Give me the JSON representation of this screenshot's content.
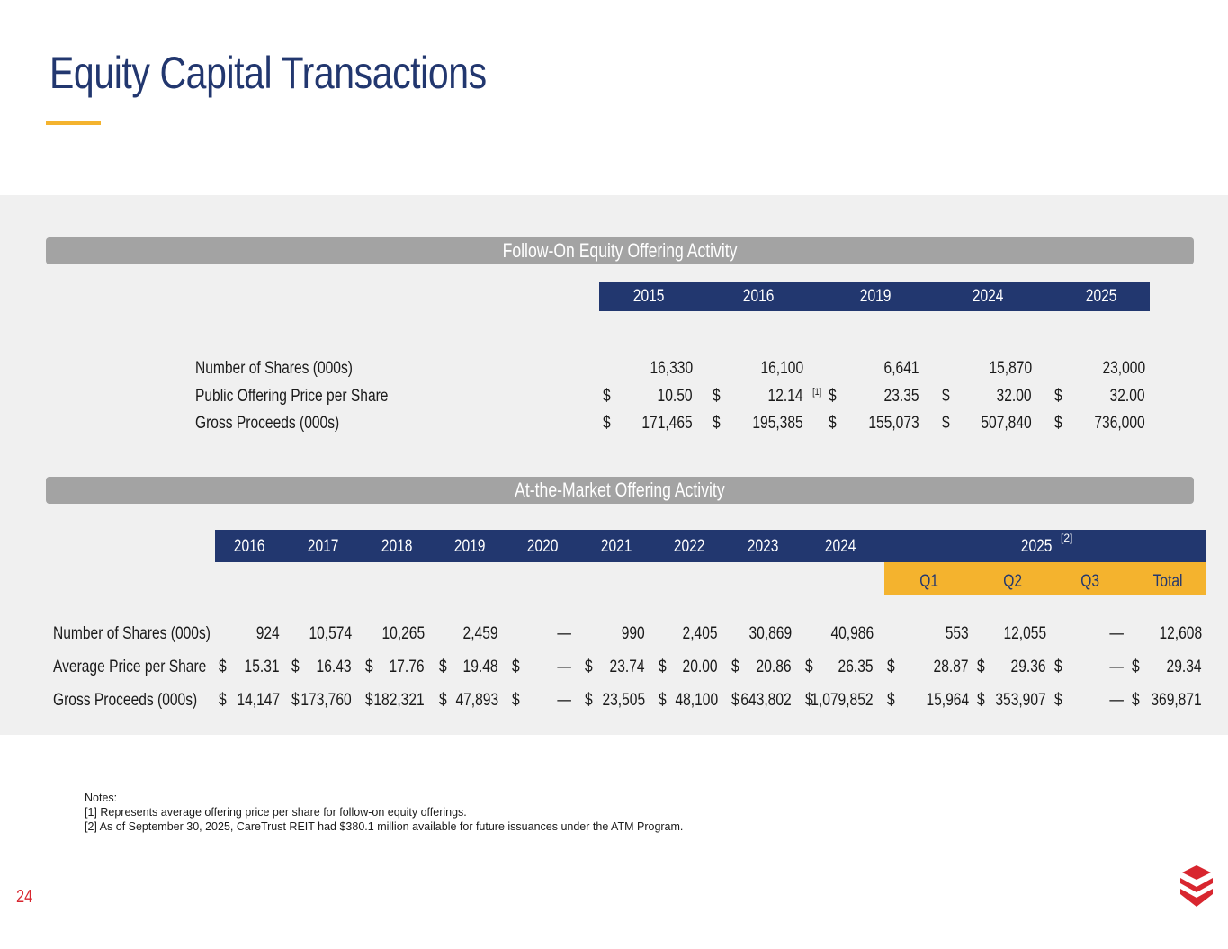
{
  "title": "Equity Capital Transactions",
  "colors": {
    "navy": "#22376f",
    "gold": "#f4b32e",
    "red": "#d8262f",
    "band": "#a3a3a3"
  },
  "follow_on": {
    "section_title": "Follow-On Equity Offering Activity",
    "years": [
      "2015",
      "2016",
      "2019",
      "2024",
      "2025"
    ],
    "rows": [
      {
        "label": "Number of Shares (000s)",
        "dollar": "",
        "values": [
          "16,330",
          "16,100",
          "6,641",
          "15,870",
          "23,000"
        ]
      },
      {
        "label": "Public Offering Price per Share",
        "dollar": "$",
        "values": [
          "10.50",
          "12.14",
          "23.35",
          "32.00",
          "32.00"
        ]
      },
      {
        "label": "Gross Proceeds (000s)",
        "dollar": "$",
        "values": [
          "171,465",
          "195,385",
          "155,073",
          "507,840",
          "736,000"
        ]
      }
    ],
    "footnote_marker": "[1]"
  },
  "atm": {
    "section_title": "At-the-Market Offering Activity",
    "years": [
      "2016",
      "2017",
      "2018",
      "2019",
      "2020",
      "2021",
      "2022",
      "2023",
      "2024"
    ],
    "year_2025": "2025",
    "year_2025_marker": "[2]",
    "quarters": [
      "Q1",
      "Q2",
      "Q3",
      "Total"
    ],
    "rows": [
      {
        "label": "Number of Shares (000s)",
        "dollar": "",
        "values": [
          "924",
          "10,574",
          "10,265",
          "2,459",
          "—",
          "990",
          "2,405",
          "30,869",
          "40,986",
          "553",
          "12,055",
          "—",
          "12,608"
        ]
      },
      {
        "label": "Average Price per Share",
        "dollar": "$",
        "values": [
          "15.31",
          "16.43",
          "17.76",
          "19.48",
          "—",
          "23.74",
          "20.00",
          "20.86",
          "26.35",
          "28.87",
          "29.36",
          "—",
          "29.34"
        ]
      },
      {
        "label": "Gross Proceeds (000s)",
        "dollar": "$",
        "values": [
          "14,147",
          "173,760",
          "182,321",
          "47,893",
          "—",
          "23,505",
          "48,100",
          "643,802",
          "1,079,852",
          "15,964",
          "353,907",
          "—",
          "369,871"
        ]
      }
    ]
  },
  "notes": {
    "heading": "Notes:",
    "items": [
      "[1] Represents average offering price per share for follow-on equity offerings.",
      "[2] As of September 30, 2025, CareTrust REIT had $380.1 million available for future issuances under the ATM Program."
    ]
  },
  "page_number": "24",
  "logo_icon": "caretrust-logo-icon"
}
